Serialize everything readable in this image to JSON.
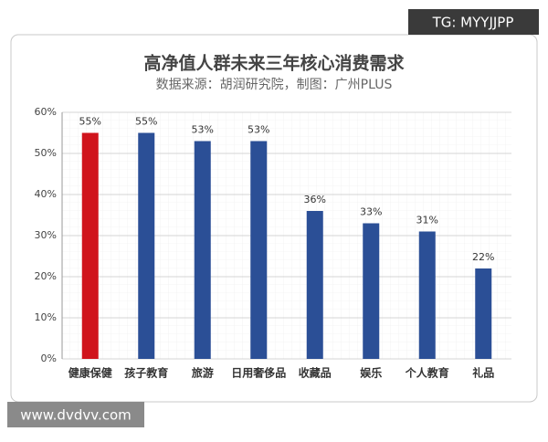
{
  "chart_data": {
    "type": "bar",
    "title": "高净值人群未来三年核心消费需求",
    "subtitle": "数据来源：胡润研究院，制图：广州PLUS",
    "categories": [
      "健康保健",
      "孩子教育",
      "旅游",
      "日用奢侈品",
      "收藏品",
      "娱乐",
      "个人教育",
      "礼品"
    ],
    "values": [
      55,
      55,
      53,
      53,
      36,
      33,
      31,
      22
    ],
    "value_labels": [
      "55%",
      "55%",
      "53%",
      "53%",
      "36%",
      "33%",
      "31%",
      "22%"
    ],
    "colors": [
      "#d0141c",
      "#2b4f96",
      "#2b4f96",
      "#2b4f96",
      "#2b4f96",
      "#2b4f96",
      "#2b4f96",
      "#2b4f96"
    ],
    "ylim": [
      0,
      60
    ],
    "yticks": [
      {
        "value": 0,
        "label": "0%"
      },
      {
        "value": 10,
        "label": "10%"
      },
      {
        "value": 20,
        "label": "20%"
      },
      {
        "value": 30,
        "label": "30%"
      },
      {
        "value": 40,
        "label": "40%"
      },
      {
        "value": 50,
        "label": "50%"
      },
      {
        "value": 60,
        "label": "60%"
      }
    ],
    "grid": true,
    "annotations": [
      "TG: MYYJJPP",
      "www.dvdvv.com"
    ]
  }
}
